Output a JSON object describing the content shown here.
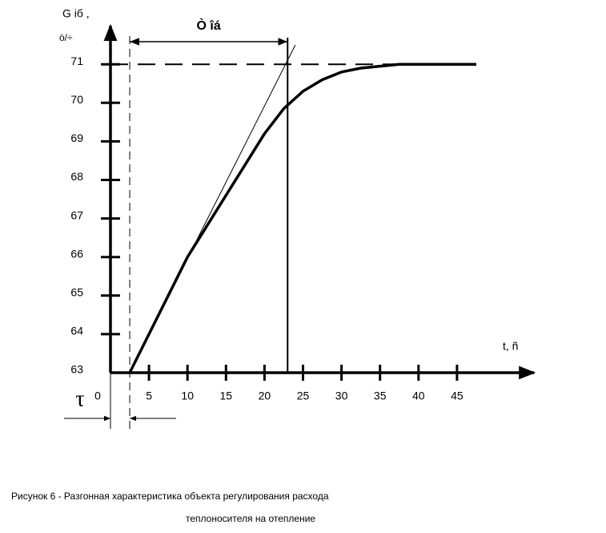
{
  "chart_data": {
    "type": "line",
    "y_label": [
      "G іб ,",
      "ò/÷"
    ],
    "x_label": "t, ñ",
    "x": [
      2.5,
      5,
      7.5,
      10,
      12.5,
      15,
      17.5,
      20,
      22.5,
      25,
      27.5,
      30,
      32.5,
      35,
      37.5,
      40,
      42.5,
      45,
      47.5
    ],
    "values": [
      63,
      64.0,
      65.0,
      66.0,
      66.8,
      67.6,
      68.4,
      69.2,
      69.85,
      70.3,
      70.6,
      70.8,
      70.9,
      70.95,
      71,
      71,
      71,
      71,
      71
    ],
    "color": "#000000",
    "xlim": [
      0,
      55
    ],
    "ylim": [
      63,
      72
    ],
    "xticks": [
      0,
      5,
      10,
      15,
      20,
      25,
      30,
      35,
      40,
      45
    ],
    "yticks": [
      63,
      64,
      65,
      66,
      67,
      68,
      69,
      70,
      71
    ],
    "steady_value": 71,
    "tangent": {
      "x": [
        2.5,
        24
      ],
      "y": [
        63,
        71.5
      ]
    },
    "tau": {
      "label": "τ",
      "value": 2.5
    },
    "t_ob": {
      "label": "Ò îá",
      "value": 23
    }
  },
  "caption": [
    "Рисунок 6 - Разгонная характеристика объекта регулирования расхода",
    "теплоносителя на отепление"
  ]
}
